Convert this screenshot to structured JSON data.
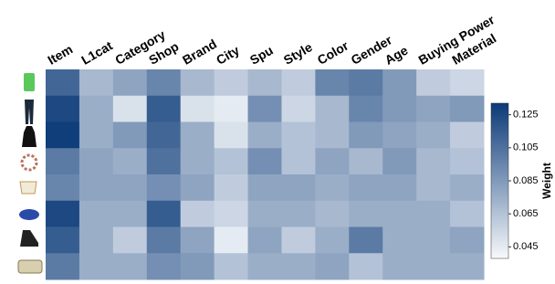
{
  "chart_data": {
    "type": "heatmap",
    "categories": [
      "Item",
      "L1cat",
      "Category",
      "Shop",
      "Brand",
      "City",
      "Spu",
      "Style",
      "Color",
      "Gender",
      "Age",
      "Buying Power",
      "Material"
    ],
    "values": [
      [
        0.11,
        0.07,
        0.08,
        0.095,
        0.07,
        0.06,
        0.07,
        0.06,
        0.095,
        0.1,
        0.085,
        0.06,
        0.055
      ],
      [
        0.125,
        0.075,
        0.05,
        0.115,
        0.05,
        0.045,
        0.09,
        0.055,
        0.07,
        0.095,
        0.085,
        0.08,
        0.085
      ],
      [
        0.13,
        0.075,
        0.085,
        0.11,
        0.075,
        0.05,
        0.075,
        0.065,
        0.07,
        0.085,
        0.08,
        0.075,
        0.06
      ],
      [
        0.1,
        0.08,
        0.075,
        0.105,
        0.075,
        0.065,
        0.09,
        0.065,
        0.08,
        0.07,
        0.085,
        0.07,
        0.065
      ],
      [
        0.095,
        0.08,
        0.08,
        0.09,
        0.08,
        0.06,
        0.08,
        0.08,
        0.075,
        0.08,
        0.08,
        0.07,
        0.075
      ],
      [
        0.125,
        0.075,
        0.075,
        0.115,
        0.06,
        0.055,
        0.075,
        0.075,
        0.07,
        0.075,
        0.075,
        0.075,
        0.065
      ],
      [
        0.115,
        0.075,
        0.06,
        0.1,
        0.08,
        0.045,
        0.08,
        0.06,
        0.075,
        0.1,
        0.075,
        0.075,
        0.08
      ],
      [
        0.1,
        0.075,
        0.075,
        0.09,
        0.085,
        0.065,
        0.075,
        0.075,
        0.08,
        0.065,
        0.075,
        0.075,
        0.075
      ]
    ],
    "colormap": [
      "#f7f9fc",
      "#0b3a78"
    ],
    "clim": [
      0.038,
      0.132
    ],
    "cticks": [
      0.045,
      0.065,
      0.085,
      0.105,
      0.125
    ],
    "colorbar_label": "Weight"
  }
}
